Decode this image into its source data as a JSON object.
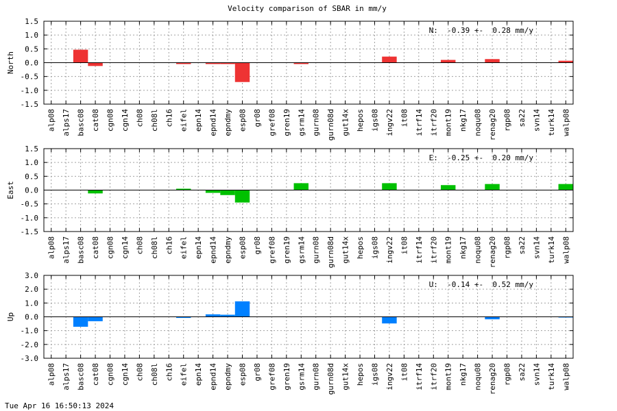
{
  "footer": "Tue Apr 16 16:50:13 2024",
  "chart_data": {
    "type": "bar",
    "title": "Velocity comparison of SBAR in mm/y",
    "categories": [
      "alp08",
      "alps17",
      "basc08",
      "cat08",
      "cgn08",
      "cgn14",
      "ch08",
      "ch08l",
      "ch16",
      "eifel",
      "epn14",
      "epnd14",
      "epndmy",
      "esp08",
      "gr08",
      "gref08",
      "gren19",
      "gsrm14",
      "gurn08",
      "gurn08d",
      "gut14x",
      "hepos",
      "igs08",
      "ingv22",
      "it08",
      "itrf14",
      "itrf20",
      "mont19",
      "nkg17",
      "noqu08",
      "renag20",
      "rgp08",
      "sa22",
      "svn14",
      "turk14",
      "walp08"
    ],
    "panels": [
      {
        "ylabel": "North",
        "color": "#ee3333",
        "ylim": [
          -1.5,
          1.5
        ],
        "yticks": [
          "1.5",
          "1.0",
          "0.5",
          "0.0",
          "-0.5",
          "-1.0",
          "-1.5"
        ],
        "ytick_values": [
          1.5,
          1.0,
          0.5,
          0.0,
          -0.5,
          -1.0,
          -1.5
        ],
        "annotation": "N:  -0.39 +-  0.28 mm/y",
        "values": [
          0,
          0,
          0.47,
          -0.12,
          0,
          0,
          0,
          0,
          0,
          -0.05,
          0,
          -0.05,
          -0.05,
          -0.7,
          0,
          0,
          0,
          -0.05,
          0,
          0,
          0,
          0,
          0,
          0.22,
          0,
          0,
          0,
          0.1,
          0,
          0,
          0.13,
          0,
          0,
          0,
          0,
          0.07
        ]
      },
      {
        "ylabel": "East",
        "color": "#00c000",
        "ylim": [
          -1.5,
          1.5
        ],
        "yticks": [
          "1.5",
          "1.0",
          "0.5",
          "0.0",
          "-0.5",
          "-1.0",
          "-1.5"
        ],
        "ytick_values": [
          1.5,
          1.0,
          0.5,
          0.0,
          -0.5,
          -1.0,
          -1.5
        ],
        "annotation": "E:  -0.25 +-  0.20 mm/y",
        "values": [
          0,
          0,
          0,
          -0.12,
          0,
          0,
          0,
          0,
          0,
          0.05,
          0,
          -0.1,
          -0.18,
          -0.45,
          0,
          0,
          0,
          0.25,
          0,
          0,
          0,
          0,
          0,
          0.25,
          0,
          0,
          0,
          0.18,
          0,
          0,
          0.22,
          0,
          0,
          0,
          0,
          0.22
        ]
      },
      {
        "ylabel": "Up",
        "color": "#0080ff",
        "ylim": [
          -3.0,
          3.0
        ],
        "yticks": [
          "3.0",
          "2.0",
          "1.0",
          "0.0",
          "-1.0",
          "-2.0",
          "-3.0"
        ],
        "ytick_values": [
          3.0,
          2.0,
          1.0,
          0.0,
          -1.0,
          -2.0,
          -3.0
        ],
        "annotation": "U:  -0.14 +-  0.52 mm/y",
        "values": [
          0,
          0,
          -0.72,
          -0.32,
          0,
          0,
          0,
          0,
          0,
          -0.08,
          0,
          0.18,
          0.15,
          1.12,
          0,
          0,
          0,
          0,
          0,
          0,
          0,
          0,
          0,
          -0.48,
          0,
          0,
          0,
          0,
          0,
          0,
          -0.18,
          0,
          0,
          0,
          0,
          -0.05
        ]
      }
    ]
  }
}
